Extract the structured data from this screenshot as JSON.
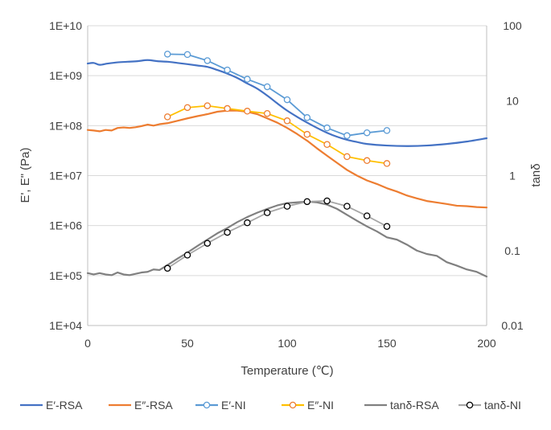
{
  "chart_data": {
    "type": "line",
    "title": "",
    "xlabel": "Temperature (℃)",
    "ylabel": "E', E\" (Pa)",
    "y2label": "tanδ",
    "xlim": [
      0,
      200
    ],
    "x_ticks": [
      0,
      50,
      100,
      150,
      200
    ],
    "x_tick_labels": [
      "0",
      "50",
      "100",
      "150",
      "200"
    ],
    "y_scale": "log",
    "ylim": [
      10000,
      10000000000
    ],
    "y_ticks": [
      10000,
      100000,
      1000000,
      10000000,
      100000000,
      1000000000,
      10000000000
    ],
    "y_tick_labels": [
      "1E+04",
      "1E+05",
      "1E+06",
      "1E+07",
      "1E+08",
      "1E+09",
      "1E+10"
    ],
    "y2_scale": "log",
    "y2lim": [
      0.01,
      100
    ],
    "y2_ticks": [
      0.01,
      0.1,
      1,
      10,
      100
    ],
    "y2_tick_labels": [
      "0.01",
      "0.1",
      "1",
      "10",
      "100"
    ],
    "grid": "horizontal",
    "legend_position": "bottom",
    "series": [
      {
        "name": "E′-RSA",
        "axis": "left",
        "color": "#4472C4",
        "marker": "none",
        "smooth": true,
        "x": [
          0,
          3,
          6,
          10,
          15,
          20,
          25,
          30,
          35,
          40,
          45,
          50,
          55,
          60,
          65,
          70,
          75,
          80,
          85,
          90,
          95,
          100,
          105,
          110,
          115,
          120,
          125,
          130,
          135,
          140,
          150,
          160,
          170,
          180,
          190,
          200
        ],
        "values": [
          1750000000,
          1800000000,
          1650000000,
          1750000000,
          1850000000,
          1900000000,
          1950000000,
          2050000000,
          1950000000,
          1900000000,
          1800000000,
          1700000000,
          1600000000,
          1500000000,
          1300000000,
          1100000000,
          900000000,
          700000000,
          550000000,
          400000000,
          280000000,
          200000000,
          150000000,
          115000000,
          90000000,
          72000000,
          60000000,
          52000000,
          47000000,
          43000000,
          40000000,
          39000000,
          40000000,
          43000000,
          48000000,
          56000000
        ]
      },
      {
        "name": "E″-RSA",
        "axis": "left",
        "color": "#ED7D31",
        "marker": "none",
        "smooth": false,
        "x": [
          0,
          3,
          6,
          9,
          12,
          15,
          18,
          21,
          24,
          27,
          30,
          33,
          36,
          40,
          45,
          50,
          55,
          60,
          65,
          70,
          75,
          80,
          85,
          90,
          95,
          100,
          105,
          110,
          115,
          120,
          125,
          130,
          135,
          140,
          145,
          150,
          155,
          160,
          165,
          170,
          175,
          180,
          185,
          190,
          195,
          200
        ],
        "values": [
          82000000,
          80000000,
          77000000,
          82000000,
          80000000,
          90000000,
          92000000,
          90000000,
          93000000,
          98000000,
          105000000,
          100000000,
          107000000,
          112000000,
          125000000,
          140000000,
          155000000,
          170000000,
          190000000,
          200000000,
          200000000,
          190000000,
          170000000,
          140000000,
          115000000,
          90000000,
          68000000,
          50000000,
          35000000,
          25000000,
          18000000,
          13000000,
          10000000,
          8000000,
          6800000,
          5600000,
          4800000,
          4000000,
          3500000,
          3100000,
          2900000,
          2700000,
          2500000,
          2450000,
          2350000,
          2300000
        ]
      },
      {
        "name": "E′-NI",
        "axis": "left",
        "color": "#5B9BD5",
        "marker": "circle",
        "smooth": false,
        "x": [
          40,
          50,
          60,
          70,
          80,
          90,
          100,
          110,
          120,
          130,
          140,
          150
        ],
        "values": [
          2700000000,
          2650000000,
          2000000000,
          1300000000,
          850000000,
          600000000,
          330000000,
          145000000,
          90000000,
          63000000,
          72000000,
          80000000
        ]
      },
      {
        "name": "E″-NI",
        "axis": "left",
        "color": "#FFC000",
        "marker": "circle",
        "marker_edge": "#ED7D31",
        "smooth": false,
        "x": [
          40,
          50,
          60,
          70,
          80,
          90,
          100,
          110,
          120,
          130,
          140,
          150
        ],
        "values": [
          150000000,
          230000000,
          250000000,
          220000000,
          195000000,
          175000000,
          125000000,
          67000000,
          42000000,
          24000000,
          20000000,
          17500000
        ]
      },
      {
        "name": "tanδ-RSA",
        "axis": "right",
        "color": "#808080",
        "marker": "none",
        "smooth": false,
        "x": [
          0,
          3,
          6,
          9,
          12,
          15,
          18,
          21,
          24,
          27,
          30,
          33,
          36,
          40,
          45,
          50,
          55,
          60,
          65,
          70,
          75,
          80,
          85,
          90,
          95,
          100,
          105,
          110,
          115,
          120,
          125,
          130,
          135,
          140,
          145,
          150,
          155,
          160,
          165,
          170,
          175,
          180,
          185,
          190,
          195,
          200
        ],
        "values": [
          0.05,
          0.048,
          0.05,
          0.048,
          0.047,
          0.051,
          0.048,
          0.047,
          0.049,
          0.051,
          0.052,
          0.056,
          0.055,
          0.064,
          0.078,
          0.094,
          0.115,
          0.14,
          0.17,
          0.2,
          0.24,
          0.28,
          0.32,
          0.36,
          0.4,
          0.43,
          0.44,
          0.45,
          0.44,
          0.41,
          0.36,
          0.3,
          0.25,
          0.21,
          0.18,
          0.15,
          0.14,
          0.12,
          0.1,
          0.09,
          0.085,
          0.07,
          0.063,
          0.056,
          0.052,
          0.045
        ]
      },
      {
        "name": "tanδ-NI",
        "axis": "right",
        "color": "#A6A6A6",
        "marker": "circle",
        "marker_edge": "#000000",
        "smooth": false,
        "x": [
          40,
          50,
          60,
          70,
          80,
          90,
          100,
          110,
          120,
          130,
          140,
          150
        ],
        "values": [
          0.058,
          0.087,
          0.125,
          0.175,
          0.235,
          0.32,
          0.39,
          0.45,
          0.46,
          0.39,
          0.29,
          0.21
        ]
      }
    ]
  }
}
